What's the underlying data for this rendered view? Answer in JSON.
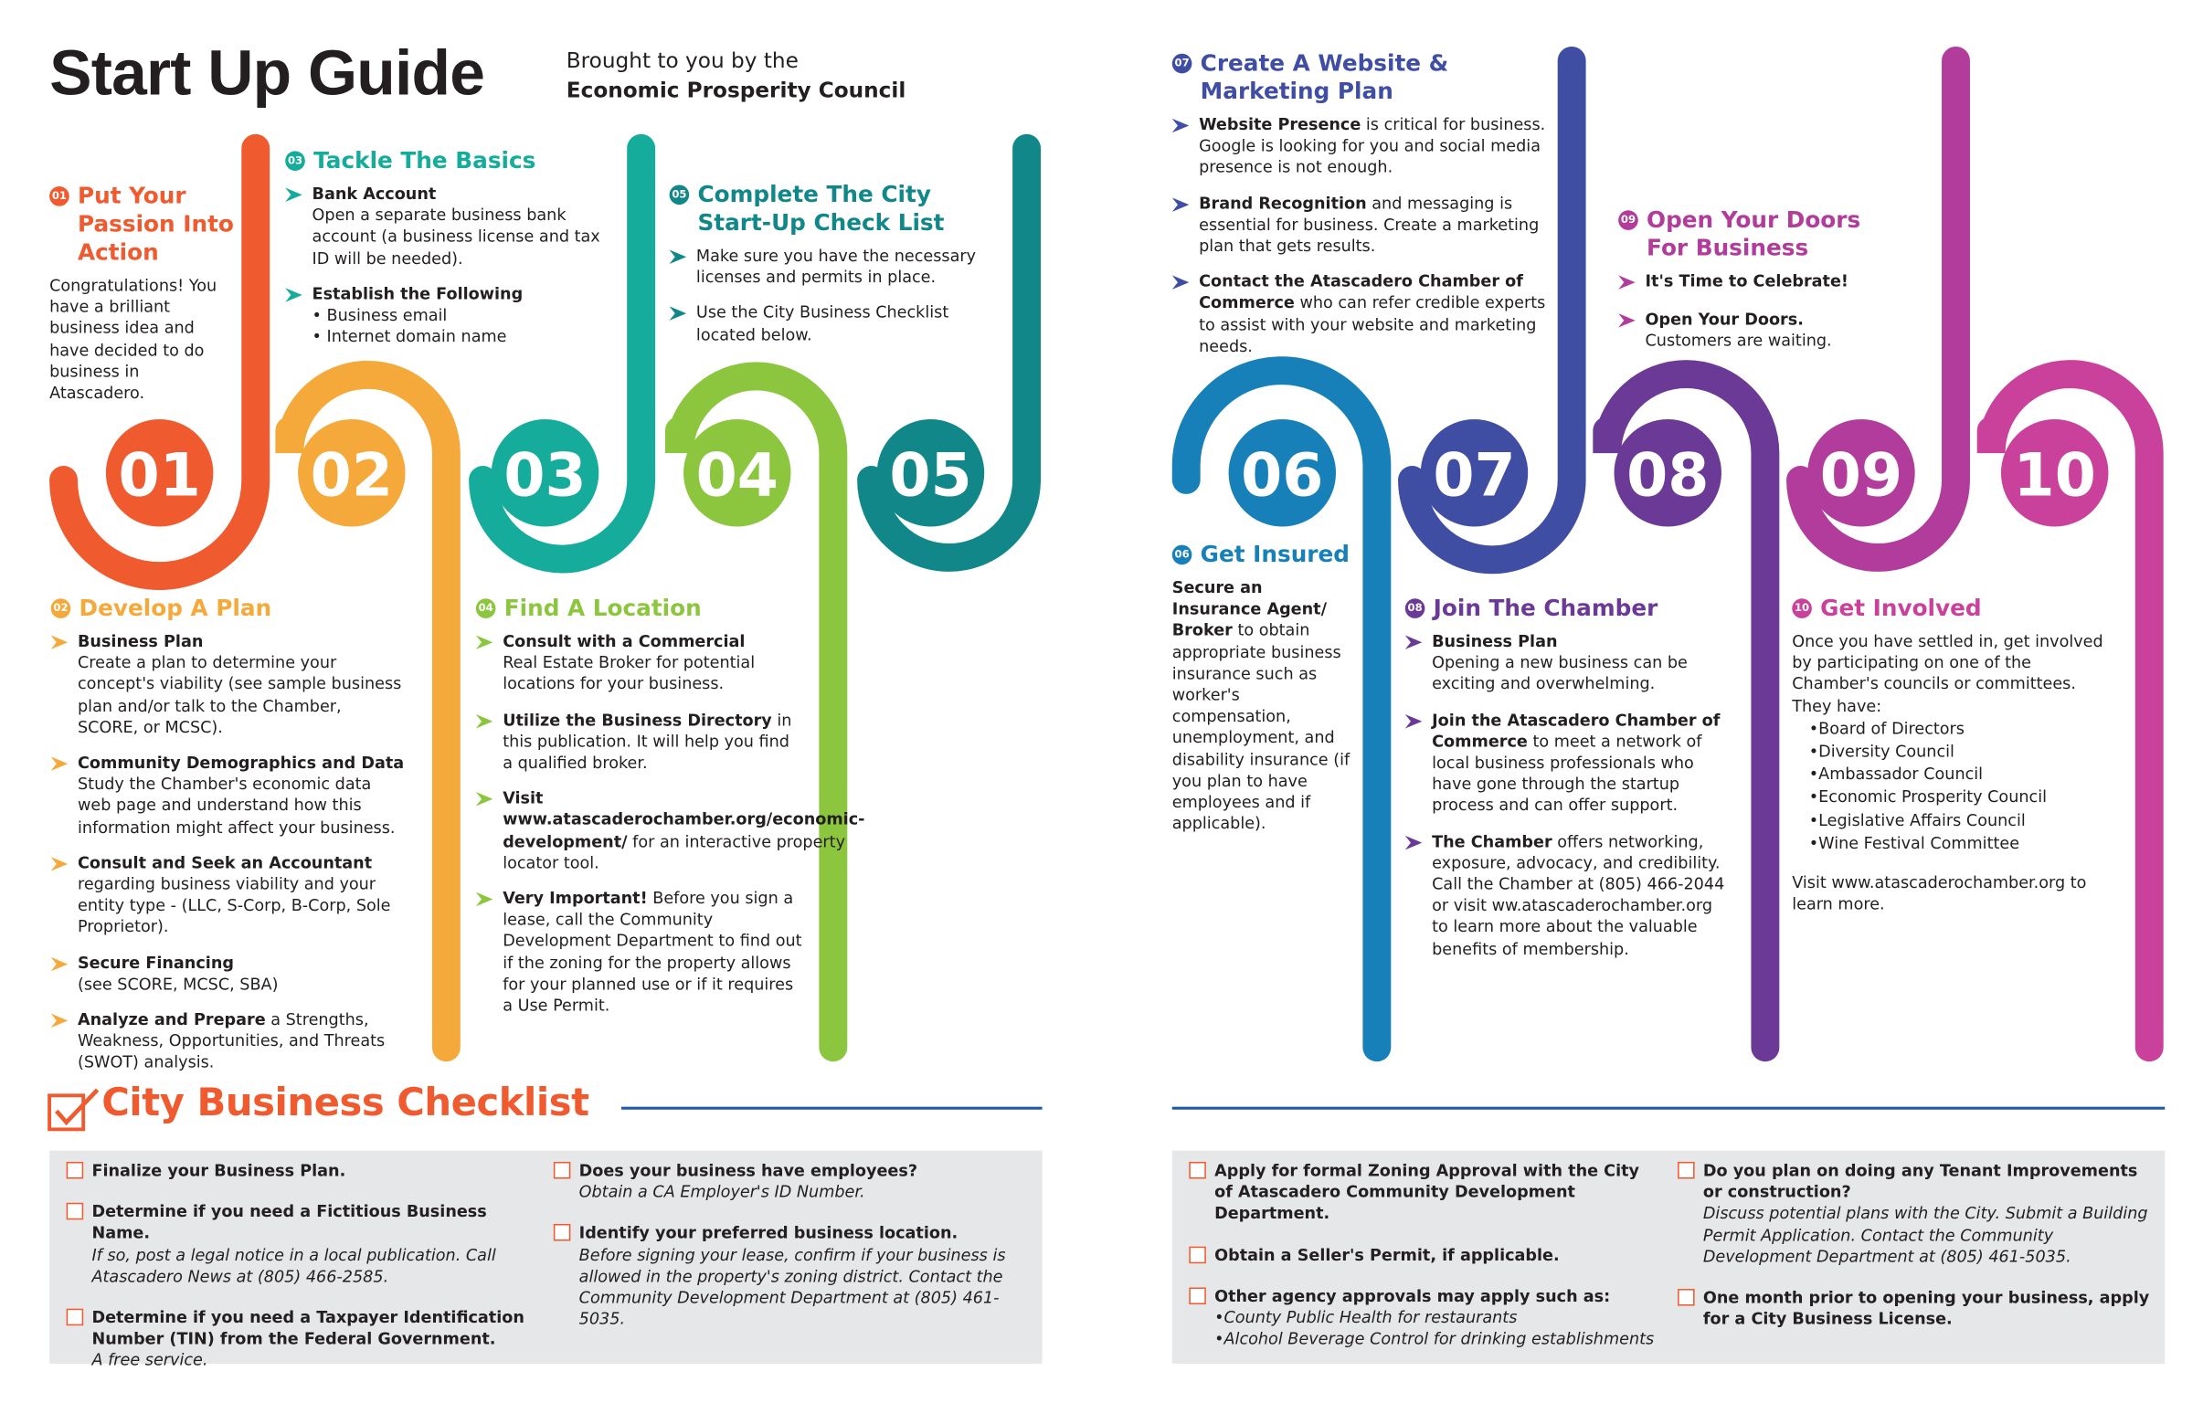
{
  "header": {
    "title": "Start Up Guide",
    "subtitle": [
      "Brought to you by the",
      "Economic Prosperity Council"
    ]
  },
  "steps": [
    {
      "number": "01",
      "title": "Put Your Passion Into Action",
      "color": "#ef5a2f",
      "paragraphs": [
        {
          "text": "Congratulations! You have a brilliant business idea and have decided to do business in Atascadero."
        }
      ]
    },
    {
      "number": "02",
      "title": "Develop A Plan",
      "color": "#f6a93b",
      "items": [
        {
          "bold": "Business Plan",
          "text": "Create a plan to determine your concept's viability (see sample business plan and/or talk to the Chamber, SCORE, or MCSC)."
        },
        {
          "bold": "Community Demographics and Data",
          "text": "Study the Chamber's economic data web page and understand how this information might affect your business."
        },
        {
          "bold": "Consult and Seek an Accountant",
          "text": "regarding business viability and your entity type - (LLC, S-Corp, B-Corp, Sole Proprietor)."
        },
        {
          "bold": "Secure Financing",
          "text": "(see SCORE, MCSC, SBA)"
        },
        {
          "bold": "Analyze and Prepare",
          "text": "a Strengths, Weakness, Opportunities, and Threats (SWOT) analysis."
        }
      ]
    },
    {
      "number": "03",
      "title": "Tackle The Basics",
      "color": "#15ac9c",
      "items": [
        {
          "bold": "Bank Account",
          "text": "Open a separate business bank account (a business license and tax ID will be needed)."
        },
        {
          "bold": "Establish the Following",
          "text": "• Business email\n• Internet domain name"
        }
      ]
    },
    {
      "number": "04",
      "title": "Find A Location",
      "color": "#8cc63f",
      "items": [
        {
          "bold": "Consult with a Commercial",
          "text": "Real Estate Broker for potential locations for your business."
        },
        {
          "bold": "Utilize the Business Directory",
          "text": "in this publication. It will help you find a qualified broker."
        },
        {
          "bold": "Visit www.atascaderochamber.org/economic-development/",
          "text": "for an interactive property locator tool."
        },
        {
          "bold": "Very Important!",
          "text": "Before you sign a lease, call the Community Development Department to find out if the zoning for the property allows for your planned use or if it requires a Use Permit."
        }
      ]
    },
    {
      "number": "05",
      "title": "Complete The City Start-Up Check List",
      "color": "#12878a",
      "items": [
        {
          "text": "Make sure you have the necessary licenses and permits in place."
        },
        {
          "text": "Use the City Business Checklist located below."
        }
      ]
    },
    {
      "number": "06",
      "title": "Get Insured",
      "color": "#1780b9",
      "paragraphs": [
        {
          "bold": "Secure an Insurance Agent/ Broker",
          "text": "to obtain appropriate business insurance such as worker's compensation, unemployment, and disability insurance (if you plan to have employees and if applicable)."
        }
      ]
    },
    {
      "number": "07",
      "title": "Create A Website & Marketing Plan",
      "color": "#3f4ea3",
      "items": [
        {
          "bold": "Website Presence",
          "text": "is critical for business. Google is looking for you and social media presence is not enough."
        },
        {
          "bold": "Brand Recognition",
          "text": "and messaging is essential for business. Create a marketing plan that gets results."
        },
        {
          "bold": "Contact the Atascadero Chamber of Commerce",
          "text": "who can refer credible experts to assist with your website and marketing needs."
        }
      ]
    },
    {
      "number": "08",
      "title": "Join The Chamber",
      "color": "#6b3996",
      "items": [
        {
          "bold": "Business Plan",
          "text": "Opening a new business can be exciting and overwhelming."
        },
        {
          "bold": "Join the Atascadero Chamber of Commerce",
          "text": "to meet a network of local business professionals who have gone through the startup process and can offer support."
        },
        {
          "bold": "The Chamber",
          "text": "offers networking, exposure, advocacy, and credibility. Call the Chamber at (805) 466-2044 or visit ww.atascaderochamber.org to learn more about the valuable benefits of membership."
        }
      ]
    },
    {
      "number": "09",
      "title": "Open Your Doors For Business",
      "color": "#b13c9c",
      "items": [
        {
          "bold": "It's Time to Celebrate!"
        },
        {
          "bold": "Open Your Doors.",
          "text": "Customers are waiting."
        }
      ]
    },
    {
      "number": "10",
      "title": "Get Involved",
      "color": "#c9419b",
      "paragraphs": [
        {
          "text": "Once you have settled in, get involved by participating on one of the Chamber's councils or committees."
        },
        {
          "text": "They have:"
        }
      ],
      "list": [
        "•Board of Directors",
        "•Diversity Council",
        "•Ambassador Council",
        "•Economic Prosperity Council",
        "•Legislative Affairs Council",
        "•Wine Festival Committee"
      ],
      "closing": "Visit www.atascaderochamber.org to learn more."
    }
  ],
  "checklist": {
    "title": "City Business Checklist",
    "columns": [
      [
        {
          "text": "Finalize your Business Plan."
        },
        {
          "text": "Determine if you need a Fictitious Business Name.",
          "note": "If so, post a legal notice in a local publication. Call Atascadero News at (805) 466-2585."
        },
        {
          "text": "Determine if you need a Taxpayer Identification Number (TIN) from the Federal Government.",
          "note": "A free service."
        }
      ],
      [
        {
          "text": "Does your business have employees?",
          "note": "Obtain a CA Employer's ID Number."
        },
        {
          "text": "Identify your preferred business location.",
          "note": "Before signing your lease, confirm if your business is allowed in the property's zoning district. Contact the Community Development Department at (805) 461-5035."
        }
      ],
      [
        {
          "text": "Apply for formal Zoning Approval with the City of Atascadero Community Development Department."
        },
        {
          "text": "Obtain a Seller's Permit, if applicable."
        },
        {
          "text": "Other agency approvals may apply such as:",
          "note": "•County Public Health for restaurants\n•Alcohol Beverage Control for drinking establishments"
        }
      ],
      [
        {
          "text": "Do you plan on doing any Tenant Improvements or construction?",
          "note": "Discuss potential plans with the City. Submit a Building Permit Application. Contact the Community Development Department at (805) 461-5035."
        },
        {
          "text": "One month prior to opening your business, apply for a City Business License."
        }
      ]
    ]
  }
}
